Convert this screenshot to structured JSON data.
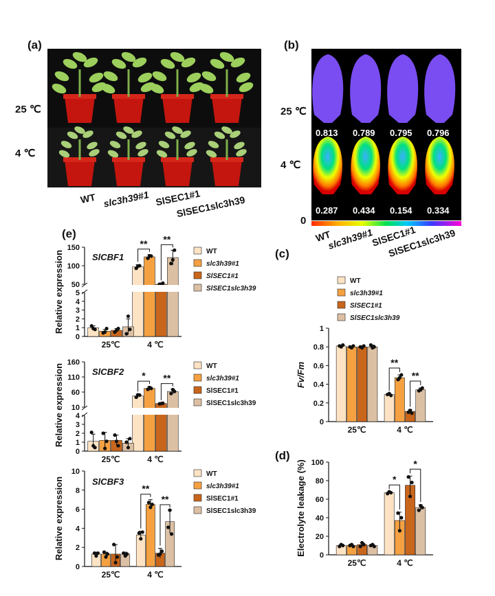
{
  "panels": {
    "a": {
      "label": "(a)",
      "conditions": [
        "25 ℃",
        "4 ℃"
      ],
      "genotypes": [
        "WT",
        "slc3h39#1",
        "SlSEC1#1",
        "SlSEC1slc3h39"
      ]
    },
    "b": {
      "label": "(b)",
      "conditions": [
        "25 ℃",
        "4 ℃"
      ],
      "scale_min": "0",
      "fvfm_25": [
        "0.813",
        "0.789",
        "0.795",
        "0.796"
      ],
      "fvfm_4": [
        "0.287",
        "0.434",
        "0.154",
        "0.334"
      ],
      "genotypes": [
        "WT",
        "slc3h39#1",
        "SlSEC1#1",
        "SlSEC1slc3h39"
      ]
    },
    "c": {
      "label": "(c)"
    },
    "d": {
      "label": "(d)"
    },
    "e": {
      "label": "(e)"
    }
  },
  "colors": {
    "WT": "#fde3c4",
    "slc3h39": "#f5a142",
    "SlSEC1": "#c8661c",
    "double": "#dcc0a4"
  },
  "chart_data": [
    {
      "id": "e1",
      "type": "bar",
      "gene": "SlCBF1",
      "ylabel": "Relative expression",
      "categories": [
        "25℃",
        "4 ℃"
      ],
      "series": [
        {
          "name": "WT",
          "values": [
            1.0,
            97
          ],
          "err": [
            0.2,
            6
          ]
        },
        {
          "name": "slc3h39#1",
          "values": [
            0.6,
            124
          ],
          "err": [
            0.2,
            6
          ]
        },
        {
          "name": "SlSEC1#1",
          "values": [
            0.7,
            47
          ],
          "err": [
            0.2,
            6
          ]
        },
        {
          "name": "SlSEC1slc3h39",
          "values": [
            1.1,
            122
          ],
          "err": [
            0.9,
            20
          ]
        }
      ],
      "points": [
        [
          [
            1.2,
            0.9,
            0.8
          ],
          [
            0.4,
            0.5,
            0.9
          ],
          [
            0.5,
            0.7,
            0.9
          ],
          [
            0.3,
            2.3,
            0.8
          ]
        ],
        [
          [
            93,
            99,
            100
          ],
          [
            120,
            127,
            126
          ],
          [
            41,
            47,
            53
          ],
          [
            106,
            116,
            142
          ]
        ]
      ],
      "yticks_low": [
        0,
        1,
        2,
        3,
        4,
        5
      ],
      "yticks_high": [
        50,
        100,
        150
      ],
      "significance": [
        {
          "label": "**",
          "pair": [
            0,
            1
          ]
        },
        {
          "label": "**",
          "pair": [
            2,
            3
          ]
        }
      ]
    },
    {
      "id": "e2",
      "type": "bar",
      "gene": "SlCBF2",
      "ylabel": "Relative expression",
      "categories": [
        "25℃",
        "4 ℃"
      ],
      "series": [
        {
          "name": "WT",
          "values": [
            1.1,
            47
          ],
          "err": [
            0.8,
            6
          ]
        },
        {
          "name": "slc3h39#1",
          "values": [
            1.2,
            72
          ],
          "err": [
            0.9,
            6
          ]
        },
        {
          "name": "SlSEC1#1",
          "values": [
            1.2,
            22
          ],
          "err": [
            0.6,
            2
          ]
        },
        {
          "name": "SlSEC1slc3h39",
          "values": [
            0.9,
            62
          ],
          "err": [
            0.5,
            8
          ]
        }
      ],
      "points": [
        [
          [
            2.1,
            0.6,
            0.4
          ],
          [
            2.0,
            0.3,
            1.1
          ],
          [
            1.8,
            1.1,
            0.6
          ],
          [
            1.0,
            0.4,
            1.4
          ]
        ],
        [
          [
            43,
            51,
            50
          ],
          [
            69,
            75,
            72
          ],
          [
            21,
            22,
            23
          ],
          [
            55,
            68,
            62
          ]
        ]
      ],
      "yticks_low": [
        0,
        1,
        2,
        3,
        4
      ],
      "yticks_high": [
        10,
        60,
        110,
        160
      ],
      "significance": [
        {
          "label": "*",
          "pair": [
            0,
            1
          ]
        },
        {
          "label": "**",
          "pair": [
            2,
            3
          ]
        }
      ]
    },
    {
      "id": "e3",
      "type": "bar",
      "gene": "SlCBF3",
      "ylabel": "Relative expression",
      "categories": [
        "25℃",
        "4 ℃"
      ],
      "ylim": [
        0,
        10
      ],
      "series": [
        {
          "name": "WT",
          "values": [
            1.3,
            3.3
          ],
          "err": [
            0.2,
            0.4
          ]
        },
        {
          "name": "slc3h39#1",
          "values": [
            1.3,
            6.5
          ],
          "err": [
            0.2,
            0.5
          ]
        },
        {
          "name": "SlSEC1#1",
          "values": [
            1.3,
            1.4
          ],
          "err": [
            1.0,
            0.5
          ]
        },
        {
          "name": "SlSEC1slc3h39",
          "values": [
            1.3,
            4.7
          ],
          "err": [
            0.2,
            1.2
          ]
        }
      ],
      "points": [
        [
          [
            1.4,
            1.1,
            1.4
          ],
          [
            1.5,
            1.0,
            1.3
          ],
          [
            2.3,
            0.4,
            1.0
          ],
          [
            1.4,
            1.1,
            1.3
          ]
        ],
        [
          [
            3.5,
            2.9,
            3.6
          ],
          [
            6.7,
            6.2,
            6.5
          ],
          [
            1.2,
            1.3,
            1.6
          ],
          [
            4.1,
            5.9,
            3.4
          ]
        ]
      ],
      "yticks": [
        0,
        2,
        4,
        6,
        8,
        10
      ],
      "significance": [
        {
          "label": "**",
          "pair": [
            0,
            1
          ]
        },
        {
          "label": "**",
          "pair": [
            2,
            3
          ]
        }
      ]
    },
    {
      "id": "c",
      "type": "bar",
      "ylabel": "Fv/Fm",
      "categories": [
        "25℃",
        "4 ℃"
      ],
      "ylim": [
        0,
        1.0
      ],
      "series": [
        {
          "name": "WT",
          "values": [
            0.81,
            0.29
          ],
          "err": [
            0.01,
            0.01
          ]
        },
        {
          "name": "slc3h39#1",
          "values": [
            0.8,
            0.47
          ],
          "err": [
            0.01,
            0.03
          ]
        },
        {
          "name": "SlSEC1#1",
          "values": [
            0.8,
            0.11
          ],
          "err": [
            0.01,
            0.02
          ]
        },
        {
          "name": "SlSEC1slc3h39",
          "values": [
            0.8,
            0.34
          ],
          "err": [
            0.02,
            0.02
          ]
        }
      ],
      "points": [
        [
          [
            0.81,
            0.8,
            0.82
          ],
          [
            0.8,
            0.79,
            0.81
          ],
          [
            0.8,
            0.79,
            0.81
          ],
          [
            0.82,
            0.79,
            0.8
          ]
        ],
        [
          [
            0.29,
            0.3,
            0.28
          ],
          [
            0.45,
            0.47,
            0.5
          ],
          [
            0.1,
            0.12,
            0.09
          ],
          [
            0.33,
            0.34,
            0.36
          ]
        ]
      ],
      "yticks": [
        0.0,
        0.2,
        0.4,
        0.6,
        0.8,
        1.0
      ],
      "significance": [
        {
          "label": "**",
          "pair": [
            0,
            1
          ]
        },
        {
          "label": "**",
          "pair": [
            2,
            3
          ]
        }
      ]
    },
    {
      "id": "d",
      "type": "bar",
      "ylabel": "Electrolyte leakage (%)",
      "categories": [
        "25℃",
        "4 ℃"
      ],
      "ylim": [
        0,
        100
      ],
      "series": [
        {
          "name": "WT",
          "values": [
            10,
            67
          ],
          "err": [
            1,
            1
          ]
        },
        {
          "name": "slc3h39#1",
          "values": [
            10,
            37
          ],
          "err": [
            1,
            9
          ]
        },
        {
          "name": "SlSEC1#1",
          "values": [
            11,
            75
          ],
          "err": [
            2,
            10
          ]
        },
        {
          "name": "SlSEC1slc3h39",
          "values": [
            10,
            51
          ],
          "err": [
            1,
            3
          ]
        }
      ],
      "points": [
        [
          [
            9,
            11,
            10
          ],
          [
            10,
            11,
            9
          ],
          [
            9,
            13,
            11
          ],
          [
            10,
            11,
            9
          ]
        ],
        [
          [
            66,
            68,
            67
          ],
          [
            45,
            26,
            40
          ],
          [
            84,
            63,
            78
          ],
          [
            48,
            53,
            51
          ]
        ]
      ],
      "yticks": [
        0,
        20,
        40,
        60,
        80,
        100
      ],
      "significance": [
        {
          "label": "*",
          "pair": [
            0,
            1
          ]
        },
        {
          "label": "*",
          "pair": [
            2,
            3
          ]
        }
      ]
    }
  ]
}
